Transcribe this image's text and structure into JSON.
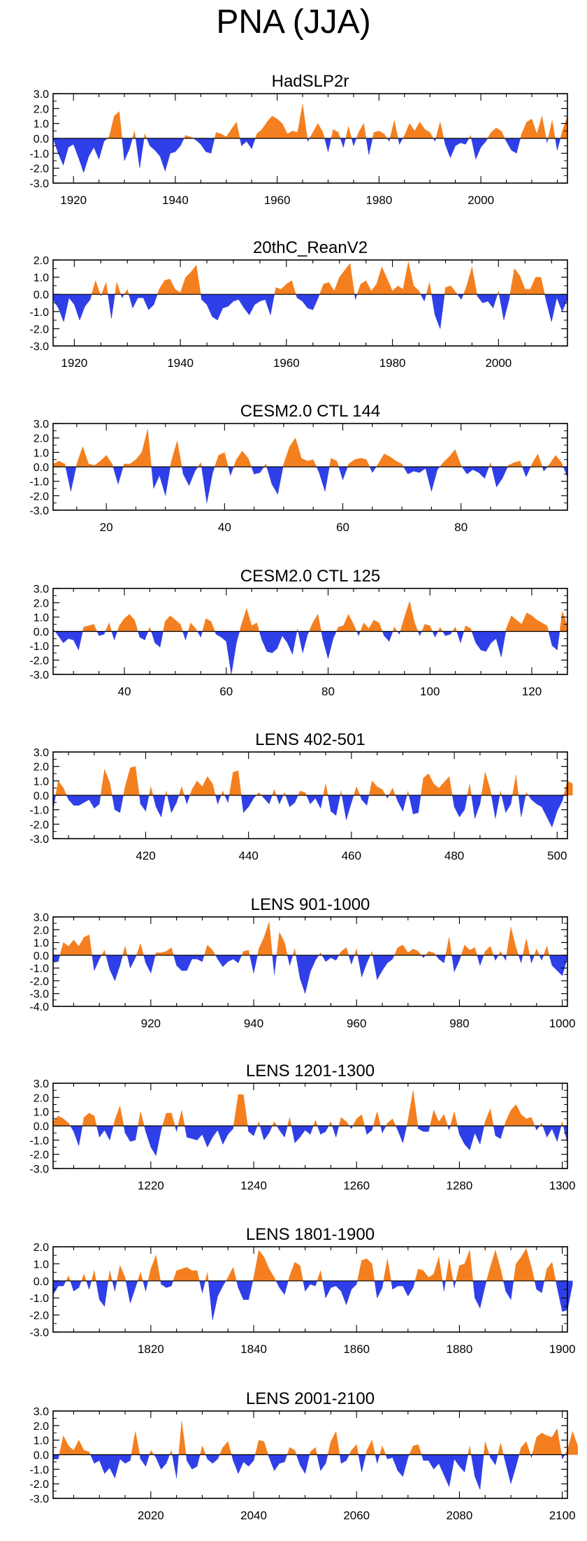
{
  "figure": {
    "title": "PNA (JJA)",
    "colors": {
      "positive": "#f47f1f",
      "negative": "#2f3fe8",
      "axis": "#000000"
    }
  },
  "chart_data": [
    {
      "type": "area",
      "title": "HadSLP2r",
      "xlim": [
        1916,
        2017
      ],
      "ylim": [
        -3,
        3
      ],
      "yticks": [
        3,
        2,
        1,
        0,
        -1,
        -2,
        -3
      ],
      "ytick_labels": [
        "3.0",
        "2.0",
        "1.0",
        "0.0",
        "-1.0",
        "-2.0",
        "-3.0"
      ],
      "xticks": [
        1920,
        1940,
        1960,
        1980,
        2000
      ],
      "xtick_labels": [
        "1920",
        "1940",
        "1960",
        "1980",
        "2000"
      ],
      "x_start": 1916,
      "values": [
        0,
        -1.0,
        -1.8,
        -0.6,
        -0.4,
        -1.3,
        -2.3,
        -1.2,
        -0.6,
        -1.4,
        -0.2,
        0.1,
        1.5,
        1.8,
        -1.5,
        -0.7,
        0.5,
        -2.0,
        0.3,
        -0.5,
        -0.8,
        -1.2,
        -2.2,
        -1.0,
        -0.9,
        -0.5,
        0.2,
        0.1,
        -0.1,
        -0.4,
        -0.9,
        -1.0,
        0.4,
        0.3,
        0.1,
        0.6,
        1.1,
        -0.5,
        -0.2,
        -0.7,
        0.3,
        0.6,
        1.1,
        1.5,
        1.3,
        1.0,
        0.3,
        0.5,
        0.4,
        2.3,
        -0.2,
        0.4,
        1.0,
        0.4,
        -0.9,
        0.6,
        0.4,
        -0.6,
        0.8,
        -0.5,
        0.4,
        1.0,
        -1.1,
        0.4,
        0.5,
        0.3,
        -0.2,
        1.2,
        -0.4,
        0.2,
        1.0,
        0.5,
        1.1,
        0.6,
        0.4,
        -0.2,
        1.1,
        -0.4,
        -1.3,
        -0.5,
        -0.3,
        -0.4,
        0.2,
        -1.4,
        -0.6,
        -0.2,
        0.4,
        0.7,
        0.5,
        -0.2,
        -0.8,
        -1.0,
        0.3,
        1.1,
        1.3,
        0.3,
        1.5,
        -0.3,
        1.2,
        -0.8,
        0.5,
        1.5
      ]
    },
    {
      "type": "area",
      "title": "20thC_ReanV2",
      "xlim": [
        1916,
        2013
      ],
      "ylim": [
        -3,
        2
      ],
      "yticks": [
        2,
        1,
        0,
        -1,
        -2,
        -3
      ],
      "ytick_labels": [
        "2.0",
        "1.0",
        "0.0",
        "-1.0",
        "-2.0",
        "-3.0"
      ],
      "xticks": [
        1920,
        1940,
        1960,
        1980,
        2000
      ],
      "xtick_labels": [
        "1920",
        "1940",
        "1960",
        "1980",
        "2000"
      ],
      "x_start": 1916,
      "values": [
        -0.3,
        -0.8,
        -1.6,
        -0.2,
        -0.6,
        -1.5,
        -0.7,
        -0.3,
        0.8,
        -0.1,
        0.7,
        -1.4,
        0.7,
        -0.2,
        0.3,
        -0.8,
        -0.2,
        -0.2,
        -0.9,
        -0.6,
        0.3,
        0.8,
        0.9,
        0.3,
        0.1,
        1.0,
        1.3,
        1.7,
        -0.3,
        -0.6,
        -1.3,
        -1.5,
        -0.8,
        -0.7,
        -0.4,
        -0.3,
        -0.8,
        -1.2,
        -0.6,
        -0.4,
        -0.3,
        -1.2,
        0.4,
        0.3,
        0.6,
        0.8,
        -0.2,
        -0.4,
        -0.8,
        -0.9,
        -0.2,
        0.6,
        0.7,
        0.2,
        1.0,
        1.4,
        1.8,
        -0.3,
        0.6,
        0.8,
        0.2,
        0.6,
        1.6,
        0.9,
        0.2,
        0.5,
        0.3,
        1.9,
        0.5,
        0.2,
        -0.4,
        0.7,
        -1.2,
        -2.0,
        0.4,
        0.5,
        0.1,
        -0.3,
        0.5,
        1.6,
        -0.1,
        -0.5,
        -0.4,
        -0.8,
        0.2,
        -1.5,
        -0.3,
        1.5,
        1.1,
        0.3,
        0.3,
        1.0,
        1.0,
        -0.4,
        -1.6,
        -0.2,
        -1.0,
        -0.3
      ]
    },
    {
      "type": "area",
      "title": "CESM2.0 CTL 144",
      "xlim": [
        11,
        98
      ],
      "ylim": [
        -3,
        3
      ],
      "yticks": [
        3,
        2,
        1,
        0,
        -1,
        -2,
        -3
      ],
      "ytick_labels": [
        "3.0",
        "2.0",
        "1.0",
        "0.0",
        "-1.0",
        "-2.0",
        "-3.0"
      ],
      "xticks": [
        20,
        40,
        60,
        80
      ],
      "xtick_labels": [
        "20",
        "40",
        "60",
        "80"
      ],
      "x_start": 11,
      "values": [
        0.2,
        0.4,
        0.2,
        -1.7,
        0.2,
        1.4,
        0.2,
        0.1,
        0.4,
        0.8,
        0.2,
        -1.2,
        0.2,
        0.2,
        0.5,
        1.0,
        2.6,
        -1.5,
        -0.6,
        -2.0,
        0.4,
        1.8,
        -0.5,
        -1.3,
        -0.3,
        0.3,
        -2.5,
        -0.4,
        0.8,
        1.0,
        -0.6,
        0.5,
        1.1,
        0.6,
        -0.5,
        -0.4,
        0.2,
        -1.2,
        -1.9,
        0.2,
        1.4,
        2.0,
        0.6,
        0.4,
        0.5,
        -0.4,
        -1.7,
        0.6,
        0.4,
        -0.9,
        0.2,
        0.5,
        0.6,
        0.5,
        -0.4,
        0.2,
        0.9,
        0.7,
        0.4,
        0.2,
        -0.5,
        -0.3,
        -0.4,
        -0.1,
        -1.7,
        -0.2,
        0.3,
        0.7,
        1.2,
        0.1,
        -0.5,
        -0.2,
        -0.4,
        -0.8,
        0.3,
        -1.4,
        -0.8,
        0.1,
        0.3,
        0.4,
        -0.7,
        0.2,
        0.9,
        -0.3,
        0.2,
        0.8,
        0.3,
        -0.7
      ]
    },
    {
      "type": "area",
      "title": "CESM2.0 CTL 125",
      "xlim": [
        26,
        127
      ],
      "ylim": [
        -3,
        3
      ],
      "yticks": [
        3,
        2,
        1,
        0,
        -1,
        -2,
        -3
      ],
      "ytick_labels": [
        "3.0",
        "2.0",
        "1.0",
        "0.0",
        "-1.0",
        "-2.0",
        "-3.0"
      ],
      "xticks": [
        40,
        60,
        80,
        100,
        120
      ],
      "xtick_labels": [
        "40",
        "60",
        "80",
        "100",
        "120"
      ],
      "x_start": 26,
      "values": [
        0.2,
        -0.3,
        -0.8,
        -0.5,
        -0.6,
        -1.3,
        0.3,
        0.4,
        0.5,
        -0.3,
        -0.2,
        0.6,
        -0.6,
        0.4,
        0.9,
        1.2,
        0.8,
        -0.4,
        -0.6,
        0.3,
        -0.8,
        -1.1,
        0.7,
        1.1,
        0.8,
        0.5,
        -0.6,
        0.6,
        0.2,
        -0.4,
        0.9,
        0.7,
        -0.2,
        -0.4,
        -0.7,
        -3.0,
        -0.8,
        0.5,
        1.6,
        0.4,
        0.6,
        -0.6,
        -1.4,
        -1.5,
        -1.2,
        -0.3,
        -0.8,
        -1.6,
        0.2,
        -1.5,
        -0.2,
        0.6,
        1.2,
        -0.6,
        -1.9,
        -0.5,
        0.3,
        0.4,
        1.2,
        0.5,
        -0.3,
        0.6,
        0.2,
        0.8,
        0.6,
        -0.3,
        -0.7,
        0.3,
        -0.2,
        1.0,
        2.1,
        0.6,
        -0.3,
        0.5,
        0.4,
        -0.4,
        0.3,
        -0.3,
        -0.2,
        0.3,
        -0.8,
        0.4,
        0.2,
        -0.8,
        -1.3,
        -1.4,
        -0.8,
        -0.5,
        -1.8,
        0.2,
        1.1,
        0.8,
        0.5,
        1.3,
        1.1,
        0.8,
        0.6,
        0.4,
        -1.0,
        -1.3,
        1.4,
        0.4
      ]
    },
    {
      "type": "area",
      "title": "LENS 402-501",
      "xlim": [
        402,
        502
      ],
      "ylim": [
        -3,
        3
      ],
      "yticks": [
        3,
        2,
        1,
        0,
        -1,
        -2,
        -3
      ],
      "ytick_labels": [
        "3.0",
        "2.0",
        "1.0",
        "0.0",
        "-1.0",
        "-2.0",
        "-3.0"
      ],
      "xticks": [
        420,
        440,
        460,
        480,
        500
      ],
      "xtick_labels": [
        "420",
        "440",
        "460",
        "480",
        "500"
      ],
      "x_start": 402,
      "values": [
        -1.0,
        1.0,
        0.5,
        -0.3,
        -0.7,
        -0.7,
        -0.5,
        -0.3,
        -0.9,
        -0.6,
        1.8,
        0.9,
        -1.0,
        -1.2,
        0.6,
        1.9,
        2.0,
        -0.6,
        -1.1,
        0.6,
        -0.8,
        -1.5,
        0.3,
        -1.2,
        -0.5,
        0.6,
        -0.6,
        0.4,
        1.0,
        0.6,
        1.3,
        0.8,
        -0.6,
        0.3,
        -0.5,
        1.6,
        1.7,
        -1.2,
        -0.8,
        -0.2,
        0.2,
        -0.2,
        -0.6,
        0.4,
        -0.6,
        0.2,
        -0.8,
        -0.5,
        0.3,
        0.2,
        -0.6,
        -0.2,
        -0.9,
        0.8,
        -1.1,
        -1.4,
        0.3,
        -1.7,
        -0.5,
        0.6,
        -0.3,
        -0.7,
        1.0,
        0.6,
        0.4,
        -0.2,
        0.5,
        -0.4,
        -1.1,
        0.3,
        -1.3,
        -1.2,
        1.2,
        1.5,
        0.8,
        0.5,
        0.9,
        1.3,
        -0.8,
        -1.5,
        -1.0,
        0.8,
        -1.6,
        -0.6,
        1.6,
        0.4,
        -1.6,
        0.3,
        -1.2,
        -0.6,
        1.4,
        -1.5,
        0.2,
        -0.3,
        -0.6,
        -0.8,
        -1.5,
        -2.2,
        -1.1,
        -0.4,
        1.0,
        0.8
      ]
    },
    {
      "type": "area",
      "title": "LENS 901-1000",
      "xlim": [
        901,
        1001
      ],
      "ylim": [
        -4,
        3
      ],
      "yticks": [
        3,
        2,
        1,
        0,
        -1,
        -2,
        -3,
        -4
      ],
      "ytick_labels": [
        "3.0",
        "2.0",
        "1.0",
        "0.0",
        "-1.0",
        "-2.0",
        "-3.0",
        "-4.0"
      ],
      "xticks": [
        920,
        940,
        960,
        980,
        1000
      ],
      "xtick_labels": [
        "920",
        "940",
        "960",
        "980",
        "1000"
      ],
      "x_start": 901,
      "values": [
        -0.5,
        -0.5,
        1.0,
        0.7,
        1.2,
        0.7,
        1.4,
        1.6,
        -1.2,
        -0.3,
        0.4,
        -1.1,
        -2.0,
        -0.8,
        0.7,
        -1.0,
        -0.2,
        0.9,
        -0.6,
        -1.4,
        0.2,
        0.2,
        0.3,
        0.6,
        -0.8,
        -1.2,
        -1.2,
        -0.3,
        -0.3,
        -0.5,
        0.8,
        0.4,
        -0.3,
        -0.9,
        -0.5,
        -0.3,
        -0.6,
        0.3,
        0.4,
        -1.4,
        0.5,
        1.4,
        2.6,
        -1.5,
        1.8,
        1.0,
        -0.8,
        0.5,
        -1.8,
        -3.0,
        -1.3,
        -0.4,
        0.2,
        -0.5,
        -0.2,
        -0.4,
        0.3,
        0.6,
        -0.7,
        0.5,
        -1.7,
        -0.6,
        0.3,
        -1.9,
        -1.2,
        -0.6,
        -0.3,
        0.6,
        0.8,
        0.2,
        0.5,
        0.3,
        -0.2,
        0.3,
        0.2,
        -0.3,
        -0.6,
        1.4,
        -1.3,
        -0.4,
        0.8,
        0.4,
        0.6,
        -0.8,
        0.3,
        0.7,
        -0.4,
        0.3,
        -0.4,
        2.2,
        0.6,
        -0.6,
        1.3,
        -0.6,
        0.5,
        -0.4,
        0.7,
        -0.8,
        -1.2,
        -1.6,
        -0.2
      ]
    },
    {
      "type": "area",
      "title": "LENS 1201-1300",
      "xlim": [
        1201,
        1301
      ],
      "ylim": [
        -3,
        3
      ],
      "yticks": [
        3,
        2,
        1,
        0,
        -1,
        -2,
        -3
      ],
      "ytick_labels": [
        "3.0",
        "2.0",
        "1.0",
        "0.0",
        "-1.0",
        "-2.0",
        "-3.0"
      ],
      "xticks": [
        1220,
        1240,
        1260,
        1280,
        1300
      ],
      "xtick_labels": [
        "1220",
        "1240",
        "1260",
        "1280",
        "1300"
      ],
      "x_start": 1201,
      "values": [
        0.3,
        0.7,
        0.5,
        0.2,
        -0.4,
        -1.4,
        0.6,
        0.9,
        0.7,
        -0.8,
        -0.3,
        -1.0,
        0.4,
        1.4,
        -0.5,
        -1.1,
        -1.0,
        1.0,
        -0.4,
        -1.5,
        -2.1,
        -0.3,
        0.9,
        0.9,
        -0.4,
        1.1,
        -0.8,
        -0.9,
        -1.0,
        -0.6,
        -1.5,
        -0.8,
        -0.3,
        -1.3,
        -0.6,
        -0.2,
        2.2,
        2.2,
        -0.4,
        -0.7,
        0.3,
        -1.0,
        -0.5,
        0.3,
        -0.3,
        -0.8,
        0.6,
        -1.2,
        -0.8,
        -0.3,
        -0.6,
        0.4,
        -0.6,
        -0.4,
        0.3,
        -0.8,
        0.6,
        0.3,
        -0.2,
        0.5,
        0.8,
        -0.6,
        -0.3,
        1.0,
        -0.5,
        0.2,
        0.5,
        -0.3,
        -1.2,
        0.4,
        2.5,
        -0.2,
        -0.4,
        -0.4,
        1.1,
        0.3,
        0.8,
        -0.3,
        1.0,
        -0.6,
        -1.3,
        -1.7,
        -0.5,
        -1.3,
        0.3,
        1.2,
        -0.7,
        -0.9,
        0.3,
        1.1,
        1.5,
        0.8,
        0.5,
        0.6,
        -0.3,
        0.2,
        -0.8,
        -0.2,
        -1.1,
        0.3,
        -1.2
      ]
    },
    {
      "type": "area",
      "title": "LENS 1801-1900",
      "xlim": [
        1801,
        1901
      ],
      "ylim": [
        -3,
        2
      ],
      "yticks": [
        2,
        1,
        0,
        -1,
        -2,
        -3
      ],
      "ytick_labels": [
        "2.0",
        "1.0",
        "0.0",
        "-1.0",
        "-2.0",
        "-3.0"
      ],
      "xticks": [
        1820,
        1840,
        1860,
        1880,
        1900
      ],
      "xtick_labels": [
        "1820",
        "1840",
        "1860",
        "1880",
        "1900"
      ],
      "x_start": 1801,
      "values": [
        -0.8,
        -0.3,
        -0.3,
        0.3,
        -0.6,
        -0.4,
        0.4,
        -0.5,
        0.6,
        -1.1,
        -1.5,
        0.6,
        -0.6,
        0.9,
        0.2,
        -1.3,
        -0.4,
        0.5,
        -0.6,
        0.7,
        1.5,
        -0.2,
        -0.4,
        -0.3,
        0.6,
        0.7,
        0.8,
        0.6,
        0.6,
        -0.7,
        0.5,
        -2.3,
        -0.9,
        -0.3,
        0.2,
        0.8,
        -0.4,
        -1.1,
        -1.1,
        0.2,
        1.8,
        1.4,
        0.7,
        0.2,
        -0.4,
        -0.8,
        0.3,
        1.1,
        0.9,
        -0.6,
        -0.2,
        -0.3,
        0.6,
        -1.0,
        -0.4,
        -0.3,
        -0.6,
        -1.4,
        -0.5,
        -0.2,
        1.2,
        1.3,
        1.0,
        -1.0,
        -0.4,
        1.3,
        -0.5,
        -0.3,
        -0.3,
        -0.9,
        -0.4,
        0.7,
        0.6,
        0.2,
        0.4,
        1.4,
        -0.6,
        1.3,
        -0.4,
        0.9,
        1.0,
        1.8,
        -1.0,
        -1.6,
        -0.3,
        0.8,
        1.8,
        0.7,
        -0.6,
        -1.1,
        1.0,
        1.4,
        1.9,
        0.8,
        -0.5,
        -0.7,
        0.7,
        1.1,
        -0.4,
        -1.8,
        -1.7,
        -0.2
      ]
    },
    {
      "type": "area",
      "title": "LENS 2001-2100",
      "xlim": [
        2001,
        2101
      ],
      "ylim": [
        -3,
        3
      ],
      "yticks": [
        3,
        2,
        1,
        0,
        -1,
        -2,
        -3
      ],
      "ytick_labels": [
        "3.0",
        "2.0",
        "1.0",
        "0.0",
        "-1.0",
        "-2.0",
        "-3.0"
      ],
      "xticks": [
        2020,
        2040,
        2060,
        2080,
        2100
      ],
      "xtick_labels": [
        "2020",
        "2040",
        "2060",
        "2080",
        "2100"
      ],
      "x_start": 2001,
      "values": [
        -0.3,
        -0.3,
        1.3,
        0.6,
        0.3,
        1.0,
        0.3,
        0.2,
        -0.6,
        -0.4,
        -1.3,
        -0.9,
        -1.6,
        -0.3,
        -0.6,
        -0.4,
        1.6,
        -0.3,
        -0.8,
        0.3,
        -0.2,
        -1.0,
        -0.6,
        0.3,
        -1.6,
        2.3,
        -0.4,
        -1.0,
        -0.8,
        0.6,
        -0.3,
        -0.6,
        -0.3,
        0.5,
        0.9,
        -0.4,
        -1.3,
        -0.5,
        -0.8,
        -0.4,
        1.0,
        0.9,
        -0.2,
        -1.1,
        -0.6,
        -0.5,
        0.5,
        0.3,
        -0.7,
        -1.3,
        0.2,
        0.5,
        -1.1,
        -0.6,
        0.9,
        1.6,
        -0.6,
        -0.4,
        0.3,
        0.7,
        -1.2,
        0.3,
        1.0,
        -0.6,
        0.6,
        -0.3,
        -0.2,
        -1.1,
        -1.5,
        -0.2,
        0.6,
        0.7,
        -0.4,
        -0.4,
        -1.0,
        -0.6,
        -1.4,
        -2.2,
        -0.3,
        -0.8,
        -1.2,
        0.6,
        -1.5,
        -2.4,
        0.9,
        -0.2,
        -0.7,
        0.8,
        -0.6,
        -2.0,
        -0.8,
        0.5,
        0.9,
        -0.2,
        1.2,
        1.5,
        1.3,
        1.2,
        1.8,
        -0.3,
        0.3,
        1.6,
        0.6
      ]
    }
  ]
}
